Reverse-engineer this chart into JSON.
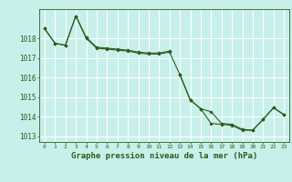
{
  "title": "Graphe pression niveau de la mer (hPa)",
  "background_color": "#c8f0ea",
  "grid_color": "#ffffff",
  "line_color": "#2d5a1b",
  "hours": [
    0,
    1,
    2,
    3,
    4,
    5,
    6,
    7,
    8,
    9,
    10,
    11,
    12,
    13,
    14,
    15,
    16,
    17,
    18,
    19,
    20,
    21,
    22,
    23
  ],
  "series1": [
    1018.5,
    1017.75,
    1017.65,
    1019.15,
    1018.05,
    1017.55,
    1017.5,
    1017.45,
    1017.4,
    1017.3,
    1017.25,
    1017.25,
    1017.35,
    null,
    null,
    null,
    null,
    null,
    null,
    null,
    null,
    null,
    null,
    null
  ],
  "series2": [
    1018.5,
    1017.75,
    1017.65,
    1019.15,
    1018.0,
    1017.5,
    1017.45,
    1017.4,
    1017.35,
    1017.25,
    1017.2,
    1017.2,
    1017.3,
    1016.15,
    1014.85,
    1014.4,
    1014.25,
    1013.65,
    1013.6,
    1013.35,
    1013.3,
    1013.85,
    1014.45,
    1014.1
  ],
  "series3": [
    null,
    null,
    null,
    null,
    null,
    null,
    null,
    null,
    null,
    null,
    null,
    null,
    null,
    1016.15,
    1014.85,
    1014.4,
    1013.65,
    1013.6,
    1013.55,
    1013.3,
    1013.3,
    1013.85,
    1014.45,
    1014.1
  ],
  "ylim": [
    1012.7,
    1019.5
  ],
  "yticks": [
    1013,
    1014,
    1015,
    1016,
    1017,
    1018
  ],
  "marker": "D",
  "marker_size": 1.8,
  "linewidth": 0.8
}
